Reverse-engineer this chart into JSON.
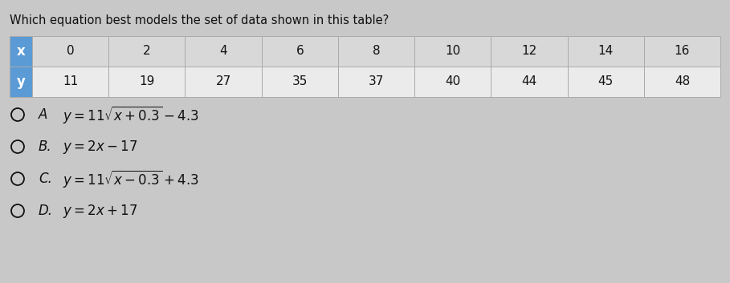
{
  "title": "Which equation best models the set of data shown in this table?",
  "title_fontsize": 10.5,
  "table_x_header": "x",
  "table_y_header": "y",
  "x_values": [
    0,
    2,
    4,
    6,
    8,
    10,
    12,
    14,
    16
  ],
  "y_values": [
    11,
    19,
    27,
    35,
    37,
    40,
    44,
    45,
    48
  ],
  "header_bg": "#5b9bd5",
  "header_text_color": "#ffffff",
  "row_x_bg": "#d8d8d8",
  "row_y_bg": "#ebebeb",
  "table_border_color": "#aaaaaa",
  "options": [
    {
      "label": "A",
      "formula": "$y = 11\\sqrt{x + 0.3} - 4.3$"
    },
    {
      "label": "B.",
      "formula": "$y = 2x - 17$"
    },
    {
      "label": "C.",
      "formula": "$y = 11\\sqrt{x - 0.3} + 4.3$"
    },
    {
      "label": "D.",
      "formula": "$y = 2x + 17$"
    }
  ],
  "option_fontsize": 12,
  "bg_color": "#c8c8c8",
  "text_color": "#111111"
}
